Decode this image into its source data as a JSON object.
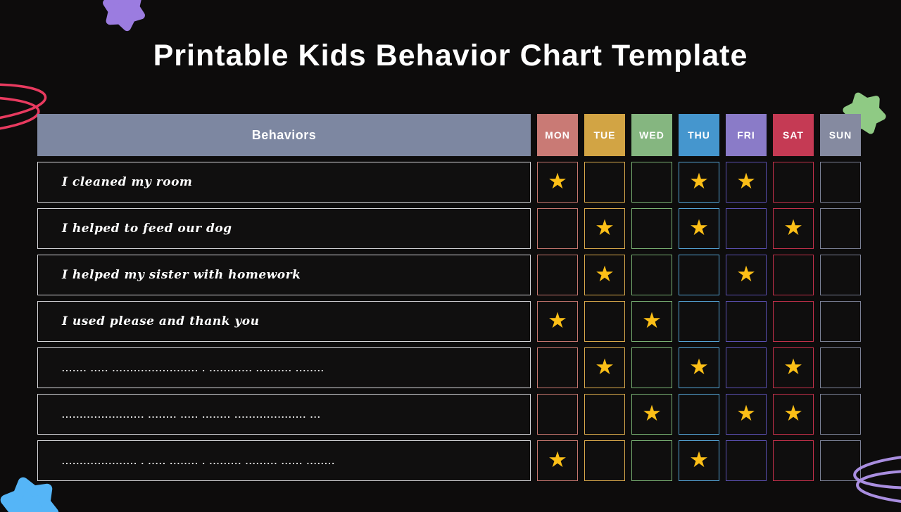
{
  "page": {
    "title": "Printable Kids Behavior Chart Template",
    "background": "#0d0c0c"
  },
  "table": {
    "behaviors_header": "Behaviors",
    "behaviors_header_bg": "#7d87a1",
    "star_icon": "★",
    "star_color": "#fcbf17",
    "row_border": "#d6d6da",
    "days": [
      {
        "label": "MON",
        "header_bg": "#c97a75",
        "cell_border": "#c4756e"
      },
      {
        "label": "TUE",
        "header_bg": "#d2a444",
        "cell_border": "#d9a94b"
      },
      {
        "label": "WED",
        "header_bg": "#85b680",
        "cell_border": "#79b173"
      },
      {
        "label": "THU",
        "header_bg": "#4596ce",
        "cell_border": "#55a4d6"
      },
      {
        "label": "FRI",
        "header_bg": "#8a7bc8",
        "cell_border": "#5b50b2"
      },
      {
        "label": "SAT",
        "header_bg": "#c53a54",
        "cell_border": "#c2304a"
      },
      {
        "label": "SUN",
        "header_bg": "#858aa0",
        "cell_border": "#7b8196"
      }
    ],
    "rows": [
      {
        "behavior": "I cleaned my room",
        "placeholder": false,
        "stars": [
          1,
          0,
          0,
          1,
          1,
          0,
          0
        ]
      },
      {
        "behavior": "I helped to feed our dog",
        "placeholder": false,
        "stars": [
          0,
          1,
          0,
          1,
          0,
          1,
          0
        ]
      },
      {
        "behavior": "I helped my sister with homework",
        "placeholder": false,
        "stars": [
          0,
          1,
          0,
          0,
          1,
          0,
          0
        ]
      },
      {
        "behavior": "I used please and thank you",
        "placeholder": false,
        "stars": [
          1,
          0,
          1,
          0,
          0,
          0,
          0
        ]
      },
      {
        "behavior": "....... ..... ........................ . ............  .......... ........",
        "placeholder": true,
        "stars": [
          0,
          1,
          0,
          1,
          0,
          1,
          0
        ]
      },
      {
        "behavior": "....................... ........  ..... ........ .................... ...",
        "placeholder": true,
        "stars": [
          0,
          0,
          1,
          0,
          1,
          1,
          0
        ]
      },
      {
        "behavior": "..................... . ..... ........ . ......... ......... ...... ........",
        "placeholder": true,
        "stars": [
          1,
          0,
          0,
          1,
          0,
          0,
          0
        ]
      }
    ]
  },
  "decorations": {
    "top_left_star_color": "#9b7ce0",
    "top_right_star_color": "#8fca84",
    "bottom_left_star_color": "#55b5f7",
    "left_spiral_color": "#e83a5f",
    "bottom_right_spiral_color": "#a98ee0"
  }
}
